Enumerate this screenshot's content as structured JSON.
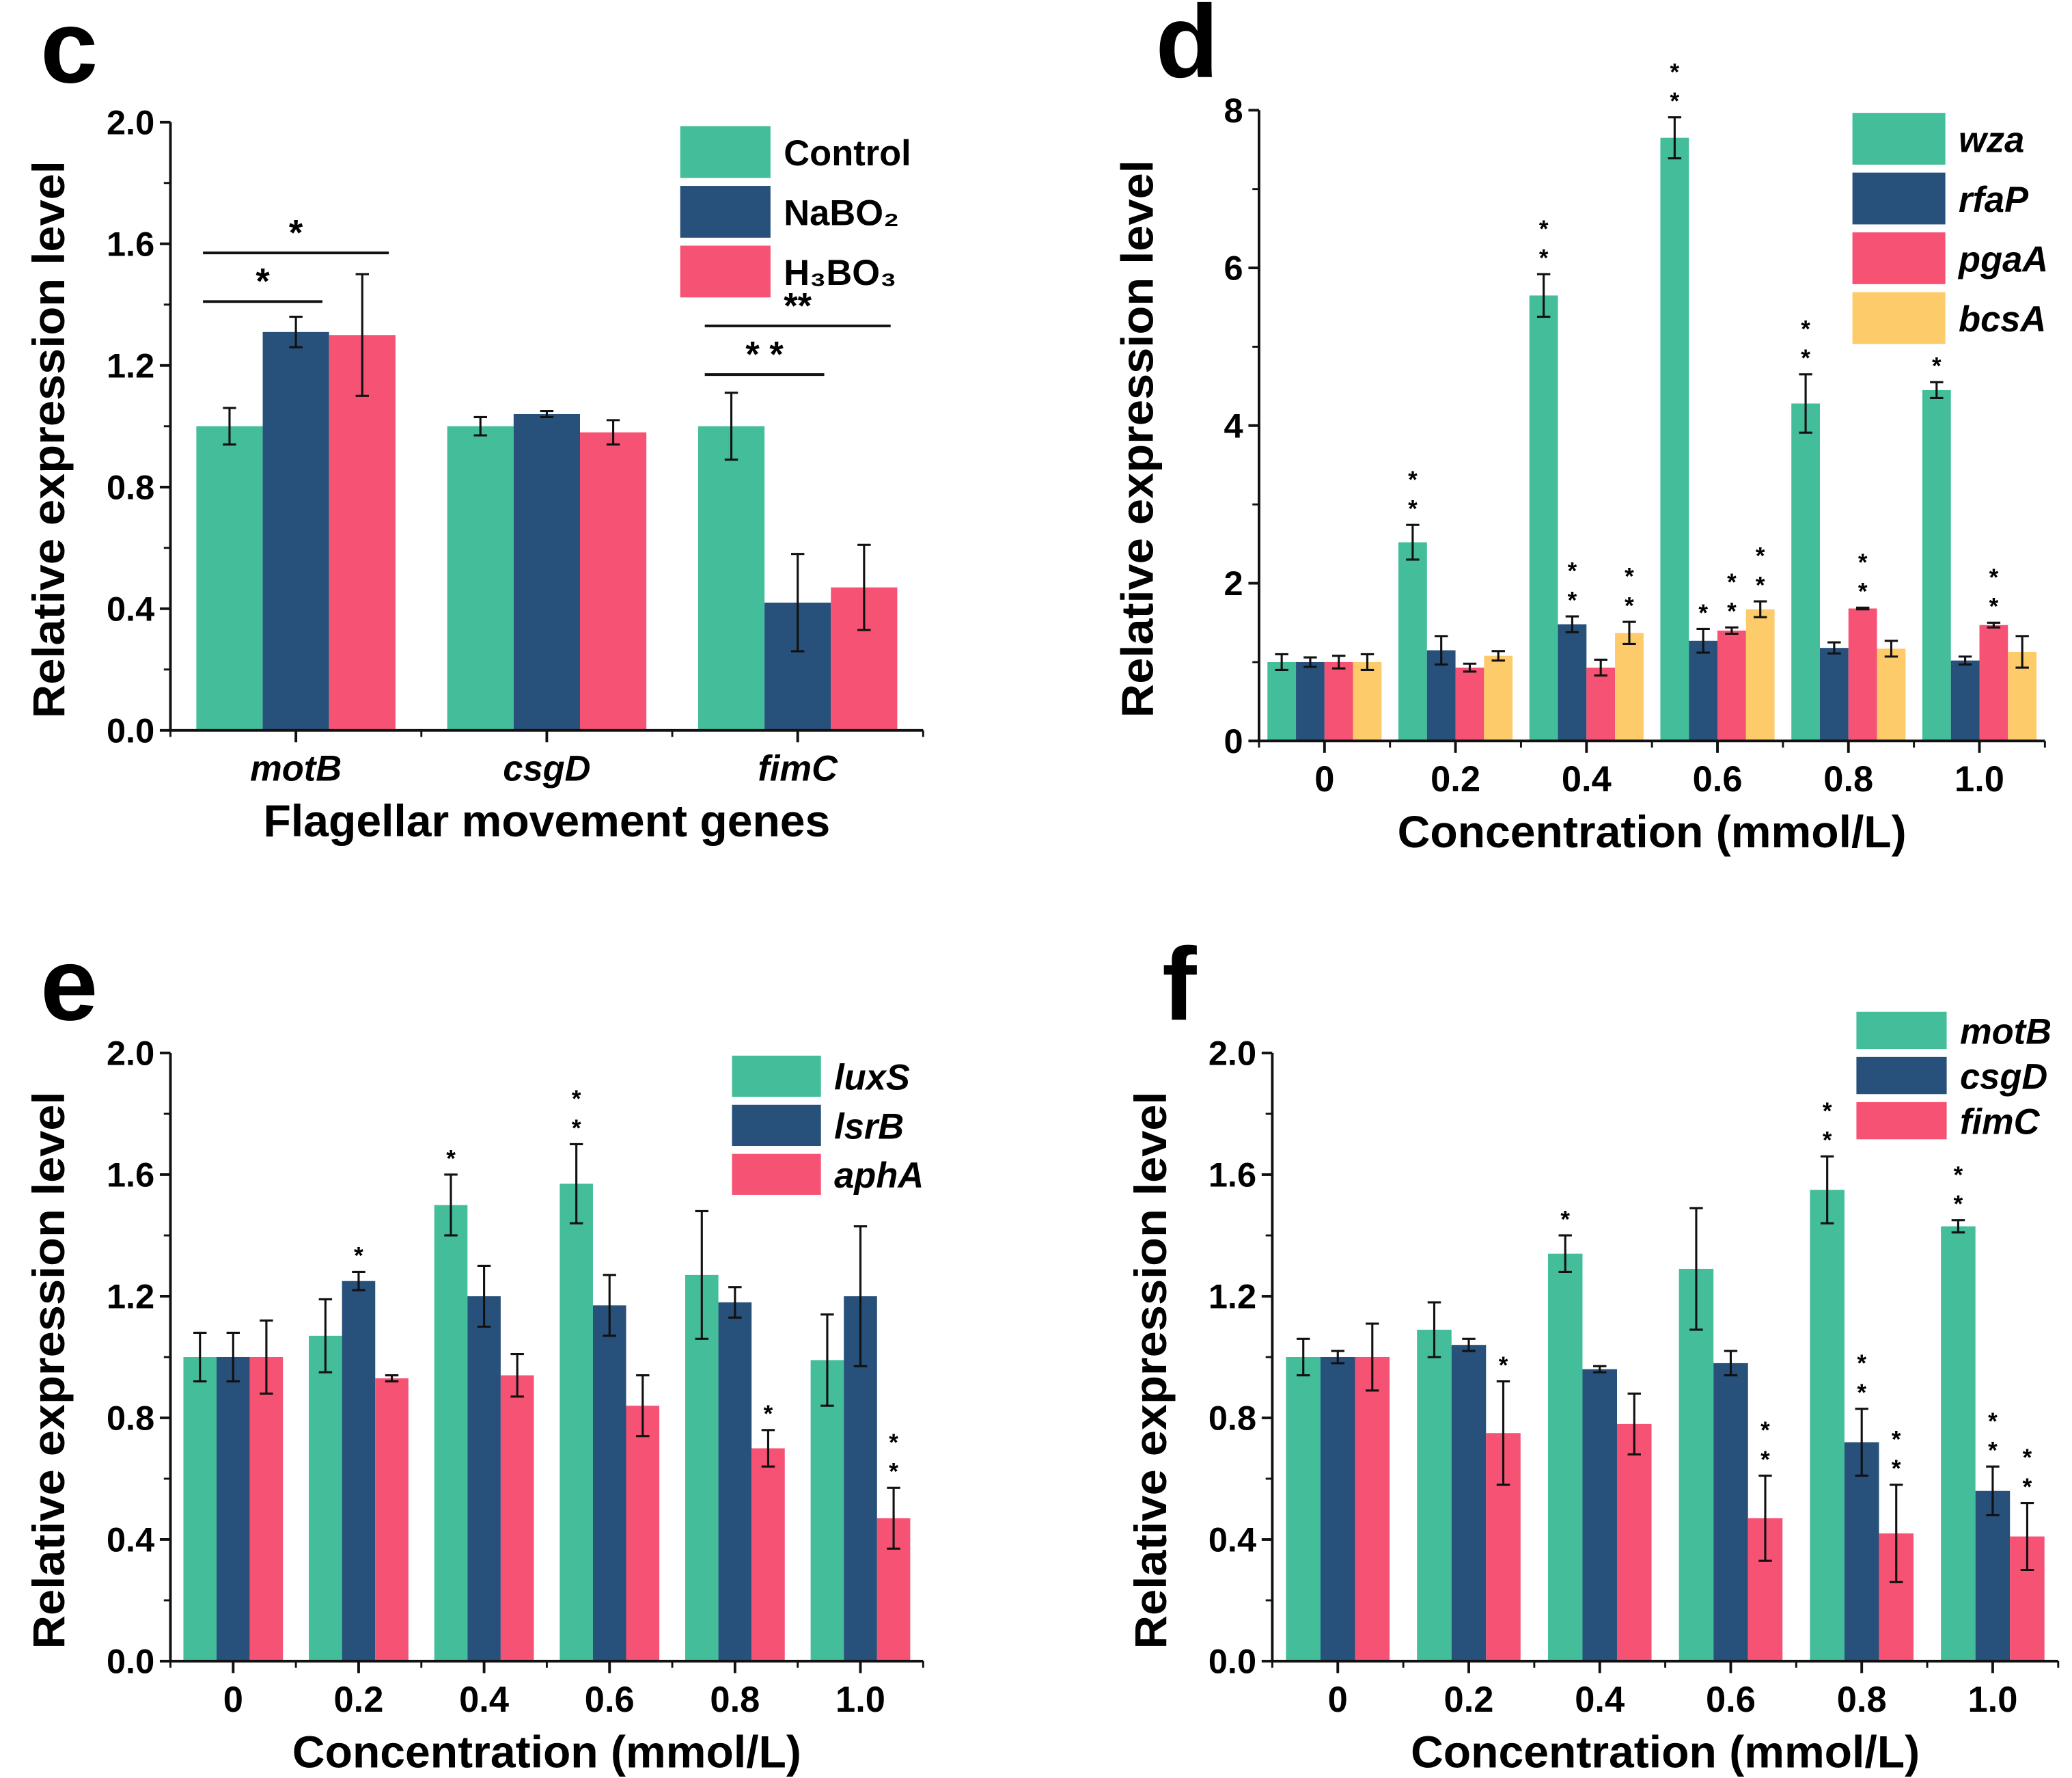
{
  "colors": {
    "green": "#43BD9A",
    "navy": "#27507A",
    "pink": "#F55274",
    "yellow": "#FDCB6A"
  },
  "chart_data": [
    {
      "panel": "c",
      "type": "bar",
      "title": "",
      "xlabel": "Flagellar movement genes",
      "ylabel": "Relative expression level",
      "ylim": [
        0,
        2.0
      ],
      "yticks": [
        "0.0",
        "0.4",
        "0.8",
        "1.2",
        "1.6",
        "2.0"
      ],
      "categories": [
        "motB",
        "csgD",
        "fimC"
      ],
      "italic_categories": true,
      "legend_italic": false,
      "series": [
        {
          "name": "Control",
          "color": "#43BD9A",
          "values": [
            1.0,
            1.0,
            1.0
          ],
          "errors": [
            0.06,
            0.03,
            0.11
          ],
          "stars": [
            "",
            "",
            ""
          ]
        },
        {
          "name": "NaBO₂",
          "color": "#27507A",
          "values": [
            1.31,
            1.04,
            0.42
          ],
          "errors": [
            0.05,
            0.01,
            0.16
          ],
          "stars": [
            "",
            "",
            ""
          ]
        },
        {
          "name": "H₃BO₃",
          "color": "#F55274",
          "values": [
            1.3,
            0.98,
            0.47
          ],
          "errors": [
            0.2,
            0.04,
            0.14
          ],
          "stars": [
            "",
            "",
            ""
          ]
        }
      ],
      "brackets": [
        {
          "category": 0,
          "from": 0,
          "to": 1,
          "label": "*",
          "y": 1.41
        },
        {
          "category": 0,
          "from": 0,
          "to": 2,
          "label": "*",
          "y": 1.57
        },
        {
          "category": 2,
          "from": 0,
          "to": 1,
          "label": "* *",
          "y": 1.17
        },
        {
          "category": 2,
          "from": 0,
          "to": 2,
          "label": "**",
          "y": 1.33
        }
      ]
    },
    {
      "panel": "d",
      "type": "bar",
      "title": "",
      "xlabel": "Concentration (mmol/L)",
      "ylabel": "Relative expression level",
      "ylim": [
        0,
        8
      ],
      "yticks": [
        "0",
        "2",
        "4",
        "6",
        "8"
      ],
      "categories": [
        "0",
        "0.2",
        "0.4",
        "0.6",
        "0.8",
        "1.0"
      ],
      "italic_categories": false,
      "legend_italic": true,
      "series": [
        {
          "name": "wza",
          "color": "#43BD9A",
          "values": [
            1.0,
            2.52,
            5.65,
            7.65,
            4.28,
            4.45
          ],
          "errors": [
            0.1,
            0.22,
            0.27,
            0.26,
            0.37,
            0.1
          ],
          "stars": [
            "",
            "**",
            "**",
            "**",
            "**",
            "**"
          ]
        },
        {
          "name": "rfaP",
          "color": "#27507A",
          "values": [
            1.0,
            1.15,
            1.48,
            1.27,
            1.18,
            1.02
          ],
          "errors": [
            0.06,
            0.18,
            0.1,
            0.15,
            0.07,
            0.05
          ],
          "stars": [
            "",
            "",
            "**",
            "*",
            "",
            ""
          ]
        },
        {
          "name": "pgaA",
          "color": "#F55274",
          "values": [
            1.0,
            0.93,
            0.93,
            1.4,
            1.68,
            1.47
          ],
          "errors": [
            0.08,
            0.05,
            0.1,
            0.04,
            0.01,
            0.03
          ],
          "stars": [
            "",
            "",
            "",
            "**",
            "**",
            "**"
          ]
        },
        {
          "name": "bcsA",
          "color": "#FDCB6A",
          "values": [
            1.0,
            1.08,
            1.37,
            1.67,
            1.17,
            1.13
          ],
          "errors": [
            0.1,
            0.06,
            0.14,
            0.1,
            0.1,
            0.2
          ],
          "stars": [
            "",
            "",
            "**",
            "**",
            "",
            ""
          ]
        }
      ],
      "brackets": []
    },
    {
      "panel": "e",
      "type": "bar",
      "title": "",
      "xlabel": "Concentration (mmol/L)",
      "ylabel": "Relative expression level",
      "ylim": [
        0,
        2.0
      ],
      "yticks": [
        "0.0",
        "0.4",
        "0.8",
        "1.2",
        "1.6",
        "2.0"
      ],
      "categories": [
        "0",
        "0.2",
        "0.4",
        "0.6",
        "0.8",
        "1.0"
      ],
      "italic_categories": false,
      "legend_italic": true,
      "series": [
        {
          "name": "luxS",
          "color": "#43BD9A",
          "values": [
            1.0,
            1.07,
            1.5,
            1.57,
            1.27,
            0.99
          ],
          "errors": [
            0.08,
            0.12,
            0.1,
            0.13,
            0.21,
            0.15
          ],
          "stars": [
            "",
            "",
            "*",
            "**",
            "",
            ""
          ]
        },
        {
          "name": "lsrB",
          "color": "#27507A",
          "values": [
            1.0,
            1.25,
            1.2,
            1.17,
            1.18,
            1.2
          ],
          "errors": [
            0.08,
            0.03,
            0.1,
            0.1,
            0.05,
            0.23
          ],
          "stars": [
            "",
            "*",
            "",
            "",
            "",
            ""
          ]
        },
        {
          "name": "aphA",
          "color": "#F55274",
          "values": [
            1.0,
            0.93,
            0.94,
            0.84,
            0.7,
            0.47
          ],
          "errors": [
            0.12,
            0.01,
            0.07,
            0.1,
            0.06,
            0.1
          ],
          "stars": [
            "",
            "",
            "",
            "",
            "*",
            "**"
          ]
        }
      ],
      "brackets": []
    },
    {
      "panel": "f",
      "type": "bar",
      "title": "",
      "xlabel": "Concentration (mmol/L)",
      "ylabel": "Relative expression level",
      "ylim": [
        0,
        2.0
      ],
      "yticks": [
        "0.0",
        "0.4",
        "0.8",
        "1.2",
        "1.6",
        "2.0"
      ],
      "categories": [
        "0",
        "0.2",
        "0.4",
        "0.6",
        "0.8",
        "1.0"
      ],
      "italic_categories": false,
      "legend_italic": true,
      "series": [
        {
          "name": "motB",
          "color": "#43BD9A",
          "values": [
            1.0,
            1.09,
            1.34,
            1.29,
            1.55,
            1.43
          ],
          "errors": [
            0.06,
            0.09,
            0.06,
            0.2,
            0.11,
            0.02
          ],
          "stars": [
            "",
            "",
            "*",
            "",
            "**",
            "**"
          ]
        },
        {
          "name": "csgD",
          "color": "#27507A",
          "values": [
            1.0,
            1.04,
            0.96,
            0.98,
            0.72,
            0.56
          ],
          "errors": [
            0.02,
            0.02,
            0.01,
            0.04,
            0.11,
            0.08
          ],
          "stars": [
            "",
            "",
            "",
            "",
            "**",
            "**"
          ]
        },
        {
          "name": "fimC",
          "color": "#F55274",
          "values": [
            1.0,
            0.75,
            0.78,
            0.47,
            0.42,
            0.41
          ],
          "errors": [
            0.11,
            0.17,
            0.1,
            0.14,
            0.16,
            0.11
          ],
          "stars": [
            "",
            "*",
            "",
            "**",
            "**",
            "**"
          ]
        }
      ],
      "brackets": []
    }
  ]
}
